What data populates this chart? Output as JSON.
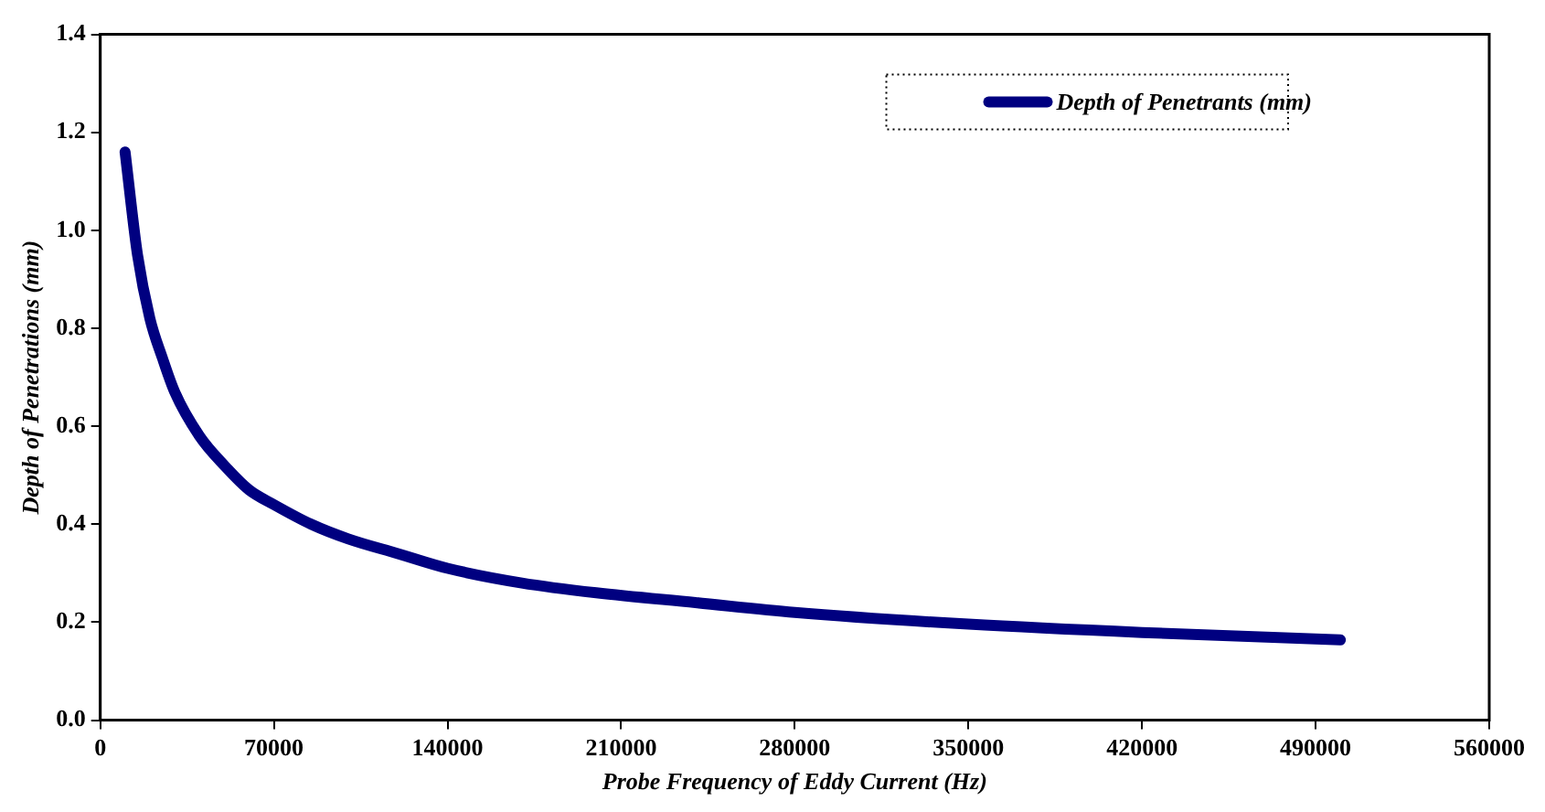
{
  "chart_data": {
    "type": "line",
    "xlabel": "Probe Frequency of Eddy Current (Hz)",
    "ylabel": "Depth of Penetrations (mm)",
    "x": [
      10000,
      15000,
      20000,
      25000,
      30000,
      40000,
      50000,
      60000,
      70000,
      85000,
      100000,
      120000,
      140000,
      170000,
      200000,
      240000,
      280000,
      350000,
      420000,
      500000
    ],
    "series": [
      {
        "name": "Depth of Penetrants (mm)",
        "color": "#000080",
        "values": [
          1.16,
          0.95,
          0.82,
          0.74,
          0.67,
          0.58,
          0.52,
          0.47,
          0.44,
          0.4,
          0.37,
          0.34,
          0.31,
          0.28,
          0.26,
          0.24,
          0.22,
          0.196,
          0.179,
          0.164
        ]
      }
    ],
    "xlim": [
      0,
      560000
    ],
    "xticks": [
      0,
      70000,
      140000,
      210000,
      280000,
      350000,
      420000,
      490000,
      560000
    ],
    "ylim": [
      0,
      1.4
    ],
    "yticks": [
      {
        "value": 0,
        "label": "0.0"
      },
      {
        "value": 0.2,
        "label": "0.2"
      },
      {
        "value": 0.4,
        "label": "0.4"
      },
      {
        "value": 0.6,
        "label": "0.6"
      },
      {
        "value": 0.8,
        "label": "0.8"
      },
      {
        "value": 1,
        "label": "1.0"
      },
      {
        "value": 1.2,
        "label": "1.2"
      },
      {
        "value": 1.4,
        "label": "1.4"
      }
    ],
    "grid": false,
    "legend": "top right",
    "marker": "none",
    "line_style": "solid"
  }
}
